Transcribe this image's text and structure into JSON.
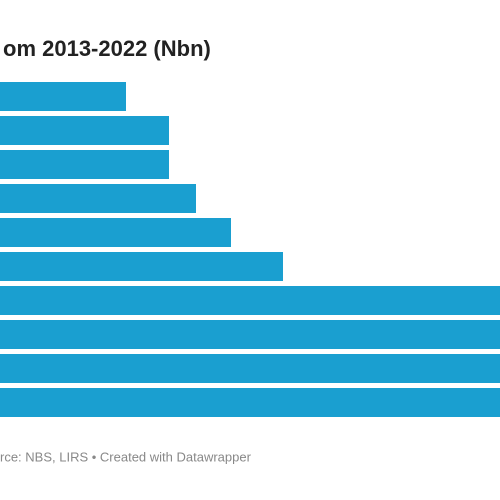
{
  "chart_data": {
    "type": "bar",
    "orientation": "horizontal",
    "title": "om 2013-2022 (Nbn)",
    "source": "rce: NBS, LIRS • Created with Datawrapper",
    "values": [
      126,
      169,
      169,
      196,
      231,
      283,
      500,
      500,
      500,
      500
    ],
    "color": "#1a9fd0",
    "xlim": [
      0,
      500
    ]
  }
}
